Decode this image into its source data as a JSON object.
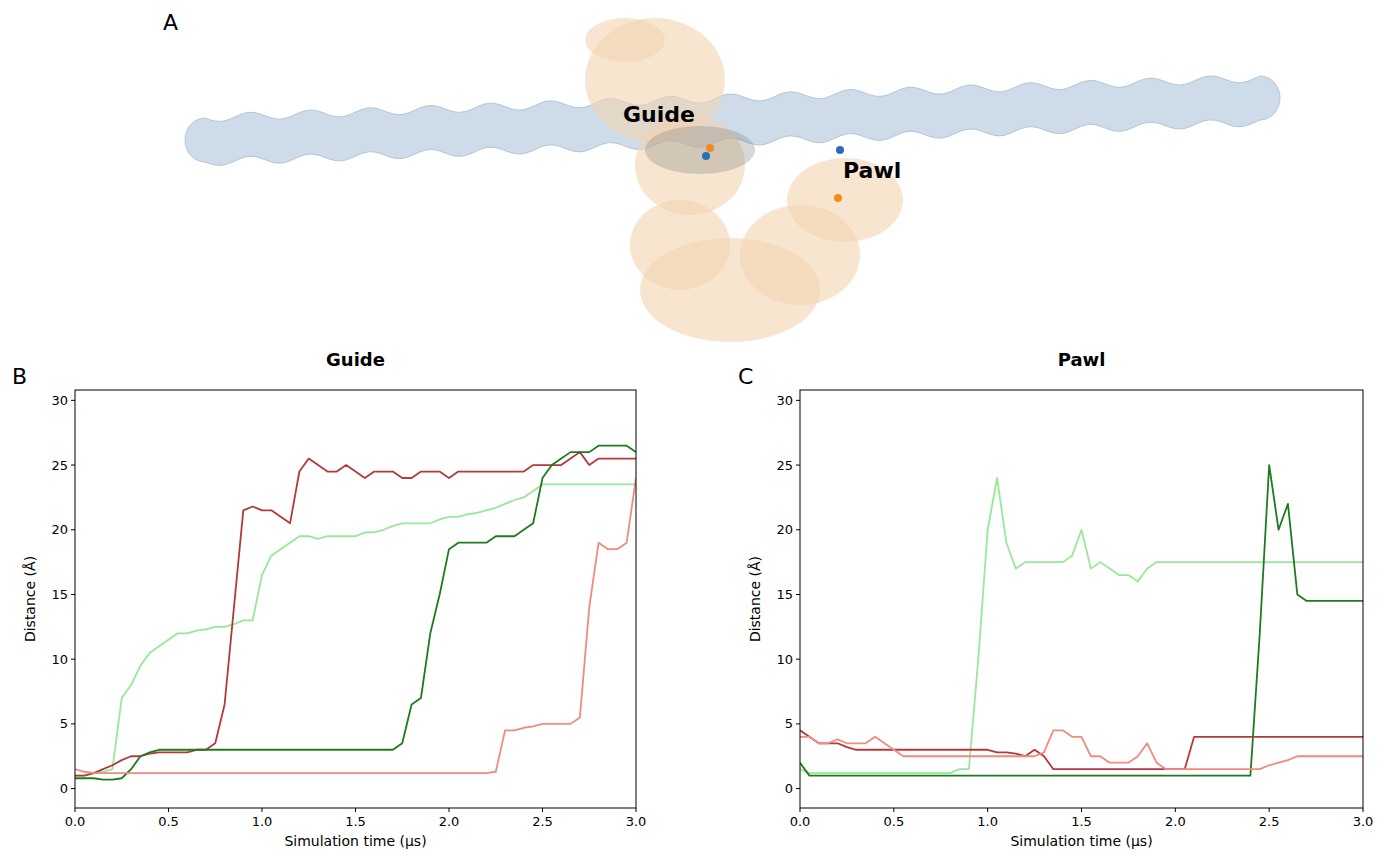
{
  "diagram": {
    "panel": "A",
    "labels": [
      "Guide",
      "Pawl"
    ]
  },
  "chart_data": [
    {
      "type": "line",
      "panel": "B",
      "title": "Guide",
      "x_label": "Simulation time (µs)",
      "y_label": "Distance (Å)",
      "xlim": [
        0,
        3
      ],
      "ylim": [
        -1.5,
        30.8
      ],
      "xticks": [
        {
          "value": 0,
          "label": "0.0"
        },
        0.5,
        {
          "value": 1,
          "label": "1.0"
        },
        1.5,
        {
          "value": 2,
          "label": "2.0"
        },
        2.5,
        {
          "value": 3,
          "label": "3.0"
        }
      ],
      "yticks": [
        0,
        5,
        10,
        15,
        20,
        25,
        30
      ],
      "grid": false,
      "x": [
        0,
        0.05,
        0.1,
        0.15,
        0.2,
        0.25,
        0.3,
        0.35,
        0.4,
        0.45,
        0.5,
        0.55,
        0.6,
        0.65,
        0.7,
        0.75,
        0.8,
        0.85,
        0.9,
        0.95,
        1,
        1.05,
        1.1,
        1.15,
        1.2,
        1.25,
        1.3,
        1.35,
        1.4,
        1.45,
        1.5,
        1.55,
        1.6,
        1.65,
        1.7,
        1.75,
        1.8,
        1.85,
        1.9,
        1.95,
        2,
        2.05,
        2.1,
        2.15,
        2.2,
        2.25,
        2.3,
        2.35,
        2.4,
        2.45,
        2.5,
        2.55,
        2.6,
        2.65,
        2.7,
        2.75,
        2.8,
        2.85,
        2.9,
        2.95,
        3
      ],
      "series": [
        {
          "color": "#98e898",
          "values": [
            1,
            1,
            1.2,
            1.3,
            1.5,
            7,
            8,
            9.5,
            10.5,
            11,
            11.5,
            12,
            12,
            12.2,
            12.3,
            12.5,
            12.5,
            12.7,
            13,
            13,
            16.5,
            18,
            18.5,
            19,
            19.5,
            19.5,
            19.3,
            19.5,
            19.5,
            19.5,
            19.5,
            19.8,
            19.8,
            20,
            20.3,
            20.5,
            20.5,
            20.5,
            20.5,
            20.8,
            21,
            21,
            21.2,
            21.3,
            21.5,
            21.7,
            22,
            22.3,
            22.5,
            23,
            23.5,
            23.5,
            23.5,
            23.5,
            23.5,
            23.5,
            23.5,
            23.5,
            23.5,
            23.5,
            23.5
          ]
        },
        {
          "color": "#b23a3a",
          "values": [
            1,
            1,
            1.2,
            1.5,
            1.8,
            2.2,
            2.5,
            2.5,
            2.7,
            2.8,
            2.8,
            2.8,
            2.8,
            3,
            3,
            3.5,
            6.5,
            14,
            21.5,
            21.8,
            21.5,
            21.5,
            21,
            20.5,
            24.5,
            25.5,
            25,
            24.5,
            24.5,
            25,
            24.5,
            24,
            24.5,
            24.5,
            24.5,
            24,
            24,
            24.5,
            24.5,
            24.5,
            24,
            24.5,
            24.5,
            24.5,
            24.5,
            24.5,
            24.5,
            24.5,
            24.5,
            25,
            25,
            25,
            25,
            25.5,
            26,
            25,
            25.5,
            25.5,
            25.5,
            25.5,
            25.5
          ]
        },
        {
          "color": "#1e7b1e",
          "values": [
            0.8,
            0.8,
            0.8,
            0.7,
            0.7,
            0.8,
            1.5,
            2.5,
            2.8,
            3,
            3,
            3,
            3,
            3,
            3,
            3,
            3,
            3,
            3,
            3,
            3,
            3,
            3,
            3,
            3,
            3,
            3,
            3,
            3,
            3,
            3,
            3,
            3,
            3,
            3,
            3.5,
            6.5,
            7,
            12,
            15,
            18.5,
            19,
            19,
            19,
            19,
            19.5,
            19.5,
            19.5,
            20,
            20.5,
            24,
            25,
            25.5,
            26,
            26,
            26,
            26.5,
            26.5,
            26.5,
            26.5,
            26
          ]
        },
        {
          "color": "#f4897f",
          "values": [
            1.5,
            1.3,
            1.2,
            1.2,
            1.2,
            1.2,
            1.2,
            1.2,
            1.2,
            1.2,
            1.2,
            1.2,
            1.2,
            1.2,
            1.2,
            1.2,
            1.2,
            1.2,
            1.2,
            1.2,
            1.2,
            1.2,
            1.2,
            1.2,
            1.2,
            1.2,
            1.2,
            1.2,
            1.2,
            1.2,
            1.2,
            1.2,
            1.2,
            1.2,
            1.2,
            1.2,
            1.2,
            1.2,
            1.2,
            1.2,
            1.2,
            1.2,
            1.2,
            1.2,
            1.2,
            1.3,
            4.5,
            4.5,
            4.7,
            4.8,
            5,
            5,
            5,
            5,
            5.5,
            14,
            19,
            18.5,
            18.5,
            19,
            24
          ]
        }
      ]
    },
    {
      "type": "line",
      "panel": "C",
      "title": "Pawl",
      "x_label": "Simulation time (µs)",
      "y_label": "Distance (Å)",
      "xlim": [
        0,
        3
      ],
      "ylim": [
        -1.5,
        30.8
      ],
      "xticks": [
        {
          "value": 0,
          "label": "0.0"
        },
        0.5,
        {
          "value": 1,
          "label": "1.0"
        },
        1.5,
        {
          "value": 2,
          "label": "2.0"
        },
        2.5,
        {
          "value": 3,
          "label": "3.0"
        }
      ],
      "yticks": [
        0,
        5,
        10,
        15,
        20,
        25,
        30
      ],
      "grid": false,
      "x": [
        0,
        0.05,
        0.1,
        0.15,
        0.2,
        0.25,
        0.3,
        0.35,
        0.4,
        0.45,
        0.5,
        0.55,
        0.6,
        0.65,
        0.7,
        0.75,
        0.8,
        0.85,
        0.9,
        0.95,
        1,
        1.05,
        1.1,
        1.15,
        1.2,
        1.25,
        1.3,
        1.35,
        1.4,
        1.45,
        1.5,
        1.55,
        1.6,
        1.65,
        1.7,
        1.75,
        1.8,
        1.85,
        1.9,
        1.95,
        2,
        2.05,
        2.1,
        2.15,
        2.2,
        2.25,
        2.3,
        2.35,
        2.4,
        2.45,
        2.5,
        2.55,
        2.6,
        2.65,
        2.7,
        2.75,
        2.8,
        2.85,
        2.9,
        2.95,
        3
      ],
      "series": [
        {
          "color": "#98e898",
          "values": [
            1.5,
            1.2,
            1.2,
            1.2,
            1.2,
            1.2,
            1.2,
            1.2,
            1.2,
            1.2,
            1.2,
            1.2,
            1.2,
            1.2,
            1.2,
            1.2,
            1.2,
            1.5,
            1.5,
            10,
            20,
            24,
            19,
            17,
            17.5,
            17.5,
            17.5,
            17.5,
            17.5,
            18,
            20,
            17,
            17.5,
            17,
            16.5,
            16.5,
            16,
            17,
            17.5,
            17.5,
            17.5,
            17.5,
            17.5,
            17.5,
            17.5,
            17.5,
            17.5,
            17.5,
            17.5,
            17.5,
            17.5,
            17.5,
            17.5,
            17.5,
            17.5,
            17.5,
            17.5,
            17.5,
            17.5,
            17.5,
            17.5
          ]
        },
        {
          "color": "#1e7b1e",
          "values": [
            2,
            1,
            1,
            1,
            1,
            1,
            1,
            1,
            1,
            1,
            1,
            1,
            1,
            1,
            1,
            1,
            1,
            1,
            1,
            1,
            1,
            1,
            1,
            1,
            1,
            1,
            1,
            1,
            1,
            1,
            1,
            1,
            1,
            1,
            1,
            1,
            1,
            1,
            1,
            1,
            1,
            1,
            1,
            1,
            1,
            1,
            1,
            1,
            1,
            12,
            25,
            20,
            22,
            15,
            14.5,
            14.5,
            14.5,
            14.5,
            14.5,
            14.5,
            14.5
          ]
        },
        {
          "color": "#b23a3a",
          "values": [
            4.5,
            4,
            3.5,
            3.5,
            3.5,
            3.2,
            3,
            3,
            3,
            3,
            3,
            3,
            3,
            3,
            3,
            3,
            3,
            3,
            3,
            3,
            3,
            2.8,
            2.8,
            2.7,
            2.5,
            3,
            2.5,
            1.5,
            1.5,
            1.5,
            1.5,
            1.5,
            1.5,
            1.5,
            1.5,
            1.5,
            1.5,
            1.5,
            1.5,
            1.5,
            1.5,
            1.5,
            4,
            4,
            4,
            4,
            4,
            4,
            4,
            4,
            4,
            4,
            4,
            4,
            4,
            4,
            4,
            4,
            4,
            4,
            4
          ]
        },
        {
          "color": "#f4897f",
          "values": [
            4,
            4,
            3.5,
            3.5,
            3.8,
            3.5,
            3.5,
            3.5,
            4,
            3.5,
            3,
            2.5,
            2.5,
            2.5,
            2.5,
            2.5,
            2.5,
            2.5,
            2.5,
            2.5,
            2.5,
            2.5,
            2.5,
            2.5,
            2.5,
            2.5,
            2.8,
            4.5,
            4.5,
            4,
            4,
            2.5,
            2.5,
            2,
            2,
            2,
            2.5,
            3.5,
            2,
            1.5,
            1.5,
            1.5,
            1.5,
            1.5,
            1.5,
            1.5,
            1.5,
            1.5,
            1.5,
            1.5,
            1.8,
            2,
            2.2,
            2.5,
            2.5,
            2.5,
            2.5,
            2.5,
            2.5,
            2.5,
            2.5
          ]
        }
      ]
    }
  ]
}
